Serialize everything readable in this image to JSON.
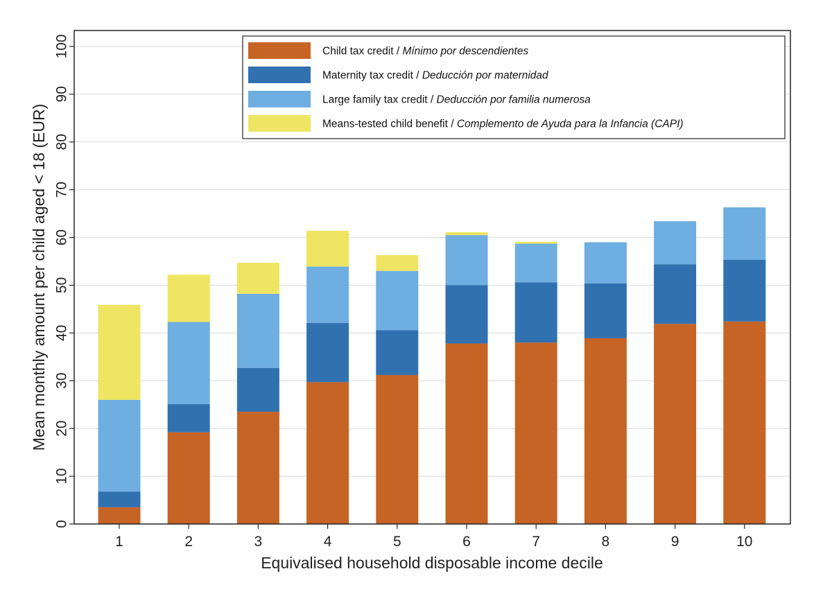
{
  "chart_data": {
    "type": "bar",
    "stacked": true,
    "title": "",
    "xlabel": "Equivalised household disposable income decile",
    "ylabel": "Mean monthly amount per child aged < 18 (EUR)",
    "ylim": [
      0,
      100
    ],
    "yticks": [
      0,
      10,
      20,
      30,
      40,
      50,
      60,
      70,
      80,
      90,
      100
    ],
    "grid": true,
    "legend_position": "top-right",
    "categories": [
      "1",
      "2",
      "3",
      "4",
      "5",
      "6",
      "7",
      "8",
      "9",
      "10"
    ],
    "series": [
      {
        "name": "Child tax credit",
        "name_es": "Mínimo por descendientes",
        "color": "#c66425",
        "values": [
          3.5,
          19.2,
          23.5,
          29.7,
          31.2,
          37.8,
          38.0,
          38.9,
          41.9,
          42.4
        ]
      },
      {
        "name": "Maternity tax credit",
        "name_es": "Deducción por maternidad",
        "color": "#3171b0",
        "values": [
          3.3,
          5.9,
          9.2,
          12.4,
          9.4,
          12.2,
          12.6,
          11.5,
          12.5,
          12.9
        ]
      },
      {
        "name": "Large family tax credit",
        "name_es": "Deducción por familia numerosa",
        "color": "#6eaee0",
        "values": [
          19.2,
          17.2,
          15.5,
          11.8,
          12.4,
          10.5,
          8.1,
          8.6,
          9.0,
          11.0
        ]
      },
      {
        "name": "Means-tested child benefit",
        "name_es": "Complemento de Ayuda para la Infancia (CAPI)",
        "color": "#eee562",
        "values": [
          19.9,
          9.9,
          6.5,
          7.5,
          3.3,
          0.6,
          0.4,
          0.0,
          0.0,
          0.0
        ]
      }
    ]
  }
}
